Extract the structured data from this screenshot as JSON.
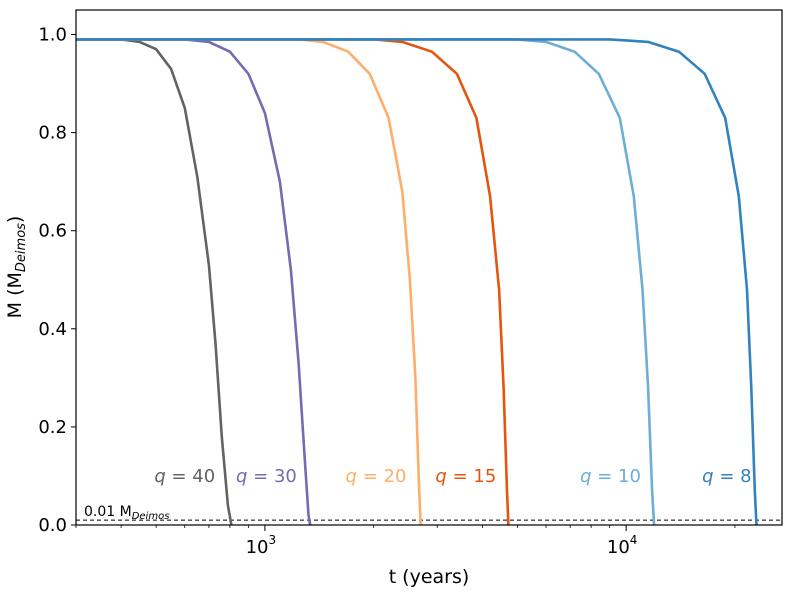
{
  "chart_data": {
    "type": "line",
    "title": "",
    "xlabel": "t (years)",
    "ylabel_main": "M (M",
    "ylabel_sub": "Deimos",
    "ylabel_close": ")",
    "xscale": "log",
    "xlim": [
      300,
      27000
    ],
    "ylim": [
      0,
      1.05
    ],
    "y_ticks": [
      0.0,
      0.2,
      0.4,
      0.6,
      0.8,
      1.0
    ],
    "y_tick_labels": [
      "0.0",
      "0.2",
      "0.4",
      "0.6",
      "0.8",
      "1.0"
    ],
    "x_major_ticks": [
      1000,
      10000
    ],
    "x_tick_labels": [
      {
        "base": "10",
        "exp": "3"
      },
      {
        "base": "10",
        "exp": "4"
      }
    ],
    "x_minor_ticks": [
      300,
      400,
      500,
      600,
      700,
      800,
      900,
      2000,
      3000,
      4000,
      5000,
      6000,
      7000,
      8000,
      9000,
      20000
    ],
    "threshold": {
      "value": 0.01,
      "label_main": "0.01 M",
      "label_sub": "Deimos"
    },
    "series": [
      {
        "name": "q = 40",
        "q_label": "q",
        "q_value": "= 40",
        "color": "#636363",
        "points": [
          [
            300,
            0.99
          ],
          [
            400,
            0.99
          ],
          [
            450,
            0.985
          ],
          [
            500,
            0.97
          ],
          [
            550,
            0.93
          ],
          [
            600,
            0.85
          ],
          [
            650,
            0.71
          ],
          [
            700,
            0.53
          ],
          [
            730,
            0.37
          ],
          [
            760,
            0.18
          ],
          [
            790,
            0.04
          ],
          [
            808,
            0.0
          ]
        ]
      },
      {
        "name": "q = 30",
        "q_label": "q",
        "q_value": "= 30",
        "color": "#756bb1",
        "points": [
          [
            300,
            0.99
          ],
          [
            600,
            0.99
          ],
          [
            700,
            0.985
          ],
          [
            800,
            0.965
          ],
          [
            900,
            0.92
          ],
          [
            1000,
            0.84
          ],
          [
            1100,
            0.7
          ],
          [
            1180,
            0.52
          ],
          [
            1240,
            0.33
          ],
          [
            1290,
            0.13
          ],
          [
            1320,
            0.02
          ],
          [
            1335,
            0.0
          ]
        ]
      },
      {
        "name": "q = 20",
        "q_label": "q",
        "q_value": "= 20",
        "color": "#fdae6b",
        "points": [
          [
            300,
            0.99
          ],
          [
            1250,
            0.99
          ],
          [
            1450,
            0.985
          ],
          [
            1700,
            0.965
          ],
          [
            1950,
            0.92
          ],
          [
            2200,
            0.83
          ],
          [
            2400,
            0.68
          ],
          [
            2520,
            0.5
          ],
          [
            2610,
            0.3
          ],
          [
            2670,
            0.08
          ],
          [
            2700,
            0.0
          ]
        ]
      },
      {
        "name": "q = 15",
        "q_label": "q",
        "q_value": "= 15",
        "color": "#e6550d",
        "points": [
          [
            300,
            0.99
          ],
          [
            2000,
            0.99
          ],
          [
            2400,
            0.985
          ],
          [
            2900,
            0.965
          ],
          [
            3400,
            0.92
          ],
          [
            3850,
            0.83
          ],
          [
            4200,
            0.67
          ],
          [
            4450,
            0.48
          ],
          [
            4580,
            0.28
          ],
          [
            4680,
            0.07
          ],
          [
            4720,
            0.0
          ]
        ]
      },
      {
        "name": "q = 10",
        "q_label": "q",
        "q_value": "= 10",
        "color": "#6baed6",
        "points": [
          [
            300,
            0.99
          ],
          [
            5000,
            0.99
          ],
          [
            6000,
            0.985
          ],
          [
            7200,
            0.965
          ],
          [
            8400,
            0.92
          ],
          [
            9600,
            0.83
          ],
          [
            10500,
            0.67
          ],
          [
            11100,
            0.48
          ],
          [
            11500,
            0.28
          ],
          [
            11800,
            0.07
          ],
          [
            11950,
            0.0
          ]
        ]
      },
      {
        "name": "q = 8",
        "q_label": "q",
        "q_value": "= 8",
        "color": "#3182bd",
        "points": [
          [
            300,
            0.99
          ],
          [
            9000,
            0.99
          ],
          [
            11500,
            0.985
          ],
          [
            14000,
            0.965
          ],
          [
            16500,
            0.92
          ],
          [
            18800,
            0.83
          ],
          [
            20500,
            0.67
          ],
          [
            21600,
            0.48
          ],
          [
            22200,
            0.28
          ],
          [
            22700,
            0.07
          ],
          [
            22950,
            0.0
          ]
        ]
      }
    ],
    "annotations": [
      {
        "series": "q = 40",
        "x": 600,
        "y": 0.1
      },
      {
        "series": "q = 30",
        "x": 1010,
        "y": 0.1
      },
      {
        "series": "q = 20",
        "x": 2030,
        "y": 0.1
      },
      {
        "series": "q = 15",
        "x": 3600,
        "y": 0.1
      },
      {
        "series": "q = 10",
        "x": 9050,
        "y": 0.1
      },
      {
        "series": "q = 8",
        "x": 19000,
        "y": 0.1
      }
    ]
  }
}
